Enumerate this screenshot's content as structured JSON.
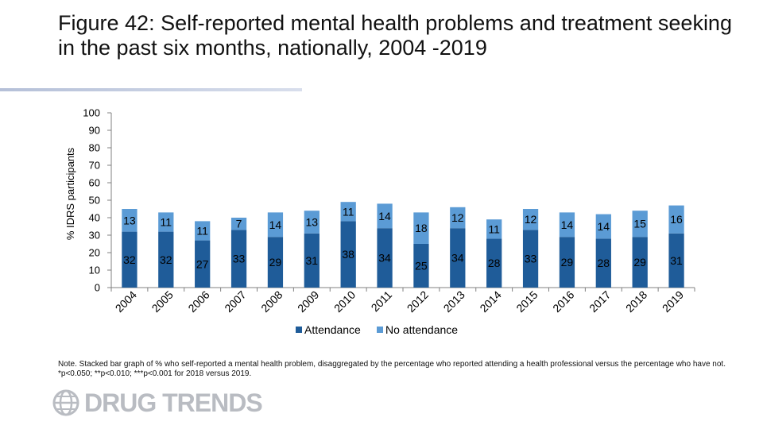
{
  "title": "Figure 42: Self-reported mental health problems and treatment seeking in the past six months, nationally, 2004 -2019",
  "note": "Note. Stacked bar graph of % who self-reported a mental health problem, disaggregated by the percentage who reported attending a health professional versus the percentage who have not. *p<0.050; **p<0.010; ***p<0.001 for 2018 versus 2019.",
  "logo": {
    "text": "DRUG TRENDS"
  },
  "colors": {
    "attendance": "#1f5c99",
    "no_attendance": "#5b9bd5",
    "axis": "#808080"
  },
  "chart_data": {
    "type": "bar",
    "stacked": true,
    "categories": [
      "2004",
      "2005",
      "2006",
      "2007",
      "2008",
      "2009",
      "2010",
      "2011",
      "2012",
      "2013",
      "2014",
      "2015",
      "2016",
      "2017",
      "2018",
      "2019"
    ],
    "series": [
      {
        "name": "Attendance",
        "values": [
          32,
          32,
          27,
          33,
          29,
          31,
          38,
          34,
          25,
          34,
          28,
          33,
          29,
          28,
          29,
          31
        ]
      },
      {
        "name": "No attendance",
        "values": [
          13,
          11,
          11,
          7,
          14,
          13,
          11,
          14,
          18,
          12,
          11,
          12,
          14,
          14,
          15,
          16
        ]
      }
    ],
    "ylabel": "% IDRS participants",
    "xlabel": "",
    "ylim": [
      0,
      100
    ],
    "yticks": [
      0,
      10,
      20,
      30,
      40,
      50,
      60,
      70,
      80,
      90,
      100
    ],
    "grid": false,
    "legend": "bottom"
  }
}
